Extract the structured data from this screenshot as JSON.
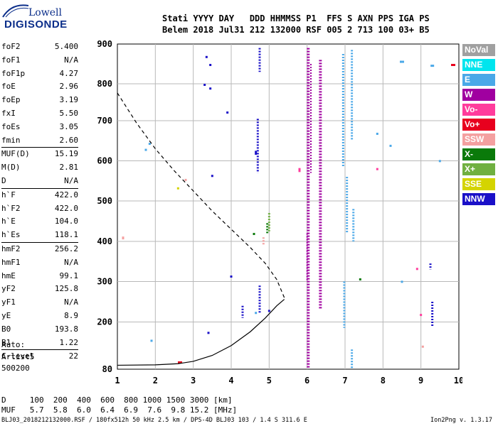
{
  "logo": {
    "line1": "Lowell",
    "line2": "DIGISONDE"
  },
  "header": {
    "line1": "Stati YYYY DAY   DDD HHMMSS P1  FFS S AXN PPS IGA PS",
    "line2": "Belem 2018 Jul31 212 132000 RSF 005 2 713 100 03+ B5"
  },
  "params": [
    {
      "label": "foF2",
      "value": "5.400"
    },
    {
      "label": "foF1",
      "value": "N/A"
    },
    {
      "label": "foF1p",
      "value": "4.27"
    },
    {
      "label": "foE",
      "value": "2.96"
    },
    {
      "label": "foEp",
      "value": "3.19"
    },
    {
      "label": "fxI",
      "value": "5.50"
    },
    {
      "label": "foEs",
      "value": "3.05"
    },
    {
      "label": "fmin",
      "value": "2.60"
    },
    {
      "label": "MUF(D)",
      "value": "15.19"
    },
    {
      "label": "M(D)",
      "value": "2.81"
    },
    {
      "label": "D",
      "value": "N/A"
    },
    {
      "label": "h`F",
      "value": "422.0"
    },
    {
      "label": "h`F2",
      "value": "422.0"
    },
    {
      "label": "h`E",
      "value": "104.0"
    },
    {
      "label": "h`Es",
      "value": "118.1"
    },
    {
      "label": "hmF2",
      "value": "256.2"
    },
    {
      "label": "hmF1",
      "value": "N/A"
    },
    {
      "label": "hmE",
      "value": "99.1"
    },
    {
      "label": "yF2",
      "value": "125.8"
    },
    {
      "label": "yF1",
      "value": "N/A"
    },
    {
      "label": "yE",
      "value": "8.9"
    },
    {
      "label": "B0",
      "value": "193.8"
    },
    {
      "label": "B1",
      "value": "1.22"
    },
    {
      "label": "C-level",
      "value": "22"
    }
  ],
  "auto": {
    "line1": "Auto:",
    "line2": "Artist5",
    "line3": "500200"
  },
  "legend": [
    {
      "label": "NoVal",
      "bg": "#a0a0a0",
      "fg": "#ffffff"
    },
    {
      "label": "NNE",
      "bg": "#00e5ee",
      "fg": "#ffffff"
    },
    {
      "label": "E",
      "bg": "#4aa8e8",
      "fg": "#ffffff"
    },
    {
      "label": "W",
      "bg": "#a000a0",
      "fg": "#ffffff"
    },
    {
      "label": "Vo-",
      "bg": "#ff3c9c",
      "fg": "#ffffff"
    },
    {
      "label": "Vo+",
      "bg": "#e8001e",
      "fg": "#ffffff"
    },
    {
      "label": "SSW",
      "bg": "#f4a0a0",
      "fg": "#ffffff"
    },
    {
      "label": "X-",
      "bg": "#0a7a0a",
      "fg": "#ffffff"
    },
    {
      "label": "X+",
      "bg": "#70b040",
      "fg": "#ffffff"
    },
    {
      "label": "SSE",
      "bg": "#d4d400",
      "fg": "#ffffff"
    },
    {
      "label": "NNW",
      "bg": "#1a10c8",
      "fg": "#ffffff"
    }
  ],
  "footer": {
    "d_line": "D     100  200  400  600  800 1000 1500 3000 [km]",
    "muf_line": "MUF   5.7  5.8  6.0  6.4  6.9  7.6  9.8 15.2 [MHz]",
    "file_line": "BLJ03_2018212132000.RSF / 180fx512h 50 kHz 2.5 km / DPS-4D BLJ03 103 / 1.4 S 311.6 E",
    "version": "Ion2Png v. 1.3.17"
  },
  "chart_data": {
    "type": "scatter",
    "x_ticks": [
      "1",
      "2",
      "3",
      "4",
      "5",
      "6",
      "7",
      "8",
      "9",
      "10"
    ],
    "y_ticks": [
      "80",
      "200",
      "300",
      "400",
      "500",
      "600",
      "700",
      "800",
      "900"
    ],
    "xlim": [
      1,
      10
    ],
    "ylim": [
      80,
      900
    ],
    "grid": true,
    "colors": {
      "grid": "#b8b8b8",
      "profile": "#000000",
      "muf": "#000000"
    },
    "profile_curve": [
      [
        1.0,
        90
      ],
      [
        2.0,
        91
      ],
      [
        2.6,
        94
      ],
      [
        3.0,
        100
      ],
      [
        3.5,
        115
      ],
      [
        4.0,
        140
      ],
      [
        4.5,
        175
      ],
      [
        4.9,
        210
      ],
      [
        5.2,
        240
      ],
      [
        5.4,
        256
      ]
    ],
    "muf_curve": [
      [
        1.0,
        775
      ],
      [
        1.5,
        695
      ],
      [
        2.0,
        630
      ],
      [
        2.5,
        575
      ],
      [
        3.0,
        525
      ],
      [
        3.5,
        475
      ],
      [
        4.0,
        430
      ],
      [
        4.5,
        385
      ],
      [
        4.9,
        345
      ],
      [
        5.2,
        305
      ],
      [
        5.4,
        260
      ]
    ],
    "points": [
      {
        "c": "W",
        "x": 6.03,
        "y0": 82,
        "y1": 890,
        "w": 4
      },
      {
        "c": "W",
        "x": 6.35,
        "y0": 230,
        "y1": 860,
        "w": 4
      },
      {
        "c": "W",
        "x": 6.1,
        "y0": 570,
        "y1": 850,
        "w": 2
      },
      {
        "c": "W",
        "x": 6.0,
        "y0": 300,
        "y1": 420,
        "w": 2
      },
      {
        "c": "E",
        "x": 6.95,
        "y0": 585,
        "y1": 875,
        "w": 3
      },
      {
        "c": "E",
        "x": 7.18,
        "y0": 650,
        "y1": 885,
        "w": 3
      },
      {
        "c": "E",
        "x": 7.18,
        "y0": 80,
        "y1": 130,
        "w": 3
      },
      {
        "c": "E",
        "x": 7.05,
        "y0": 420,
        "y1": 560,
        "w": 3
      },
      {
        "c": "E",
        "x": 7.22,
        "y0": 400,
        "y1": 480,
        "w": 3
      },
      {
        "c": "E",
        "x": 6.98,
        "y0": 185,
        "y1": 300,
        "w": 3
      },
      {
        "c": "NNW",
        "x": 4.7,
        "y0": 570,
        "y1": 705,
        "w": 3
      },
      {
        "c": "NNW",
        "x": 4.75,
        "y0": 830,
        "y1": 890,
        "w": 3
      },
      {
        "c": "NNW",
        "x": 4.75,
        "y0": 220,
        "y1": 290,
        "w": 3
      },
      {
        "c": "NNW",
        "x": 9.3,
        "y0": 190,
        "y1": 250,
        "w": 3
      },
      {
        "c": "NNW",
        "x": 9.25,
        "y0": 330,
        "y1": 345,
        "w": 3
      },
      {
        "c": "NNW",
        "x": 4.3,
        "y0": 210,
        "y1": 240,
        "w": 3
      },
      {
        "c": "X+",
        "x": 5.0,
        "y0": 425,
        "y1": 470,
        "w": 3
      },
      {
        "c": "X-",
        "x": 4.95,
        "y0": 418,
        "y1": 445,
        "w": 3
      },
      {
        "c": "Vo+",
        "x": 9.85,
        "y0": 845,
        "y1": 850,
        "w": 6
      },
      {
        "c": "Vo+",
        "x": 2.65,
        "y0": 95,
        "y1": 100,
        "w": 6
      },
      {
        "c": "E",
        "x": 8.5,
        "y0": 853,
        "y1": 858,
        "w": 6
      },
      {
        "c": "E",
        "x": 9.3,
        "y0": 845,
        "y1": 848,
        "w": 5
      },
      {
        "c": "NNW",
        "x": 3.35,
        "y0": 865,
        "y1": 870,
        "w": 3
      },
      {
        "c": "NNW",
        "x": 3.45,
        "y0": 845,
        "y1": 850,
        "w": 3
      },
      {
        "c": "NNW",
        "x": 3.3,
        "y0": 795,
        "y1": 800,
        "w": 3
      },
      {
        "c": "NNW",
        "x": 3.45,
        "y0": 785,
        "y1": 790,
        "w": 3
      },
      {
        "c": "NNW",
        "x": 3.9,
        "y0": 720,
        "y1": 725,
        "w": 3
      },
      {
        "c": "NNW",
        "x": 4.65,
        "y0": 615,
        "y1": 625,
        "w": 3
      },
      {
        "c": "NNW",
        "x": 3.5,
        "y0": 560,
        "y1": 565,
        "w": 3
      },
      {
        "c": "NNW",
        "x": 4.0,
        "y0": 310,
        "y1": 315,
        "w": 3
      },
      {
        "c": "NNW",
        "x": 3.4,
        "y0": 170,
        "y1": 175,
        "w": 3
      },
      {
        "c": "NNW",
        "x": 5.0,
        "y0": 225,
        "y1": 230,
        "w": 3
      },
      {
        "c": "E",
        "x": 1.85,
        "y0": 640,
        "y1": 645,
        "w": 3
      },
      {
        "c": "E",
        "x": 1.75,
        "y0": 625,
        "y1": 630,
        "w": 3
      },
      {
        "c": "E",
        "x": 8.2,
        "y0": 635,
        "y1": 640,
        "w": 3
      },
      {
        "c": "E",
        "x": 7.85,
        "y0": 665,
        "y1": 670,
        "w": 3
      },
      {
        "c": "E",
        "x": 9.5,
        "y0": 598,
        "y1": 602,
        "w": 3
      },
      {
        "c": "E",
        "x": 8.5,
        "y0": 298,
        "y1": 302,
        "w": 3
      },
      {
        "c": "E",
        "x": 4.65,
        "y0": 220,
        "y1": 225,
        "w": 3
      },
      {
        "c": "E",
        "x": 1.9,
        "y0": 150,
        "y1": 155,
        "w": 3
      },
      {
        "c": "SSW",
        "x": 1.15,
        "y0": 405,
        "y1": 412,
        "w": 3
      },
      {
        "c": "SSW",
        "x": 2.8,
        "y0": 550,
        "y1": 555,
        "w": 3
      },
      {
        "c": "SSW",
        "x": 4.85,
        "y0": 390,
        "y1": 410,
        "w": 3
      },
      {
        "c": "SSW",
        "x": 9.05,
        "y0": 135,
        "y1": 140,
        "w": 3
      },
      {
        "c": "Vo-",
        "x": 5.8,
        "y0": 572,
        "y1": 582,
        "w": 3
      },
      {
        "c": "Vo-",
        "x": 7.85,
        "y0": 578,
        "y1": 582,
        "w": 3
      },
      {
        "c": "Vo-",
        "x": 8.9,
        "y0": 330,
        "y1": 334,
        "w": 3
      },
      {
        "c": "Vo-",
        "x": 9.0,
        "y0": 215,
        "y1": 220,
        "w": 3
      },
      {
        "c": "X-",
        "x": 4.6,
        "y0": 418,
        "y1": 421,
        "w": 3
      },
      {
        "c": "X-",
        "x": 7.4,
        "y0": 305,
        "y1": 308,
        "w": 3
      },
      {
        "c": "SSE",
        "x": 2.6,
        "y0": 530,
        "y1": 534,
        "w": 3
      }
    ]
  }
}
